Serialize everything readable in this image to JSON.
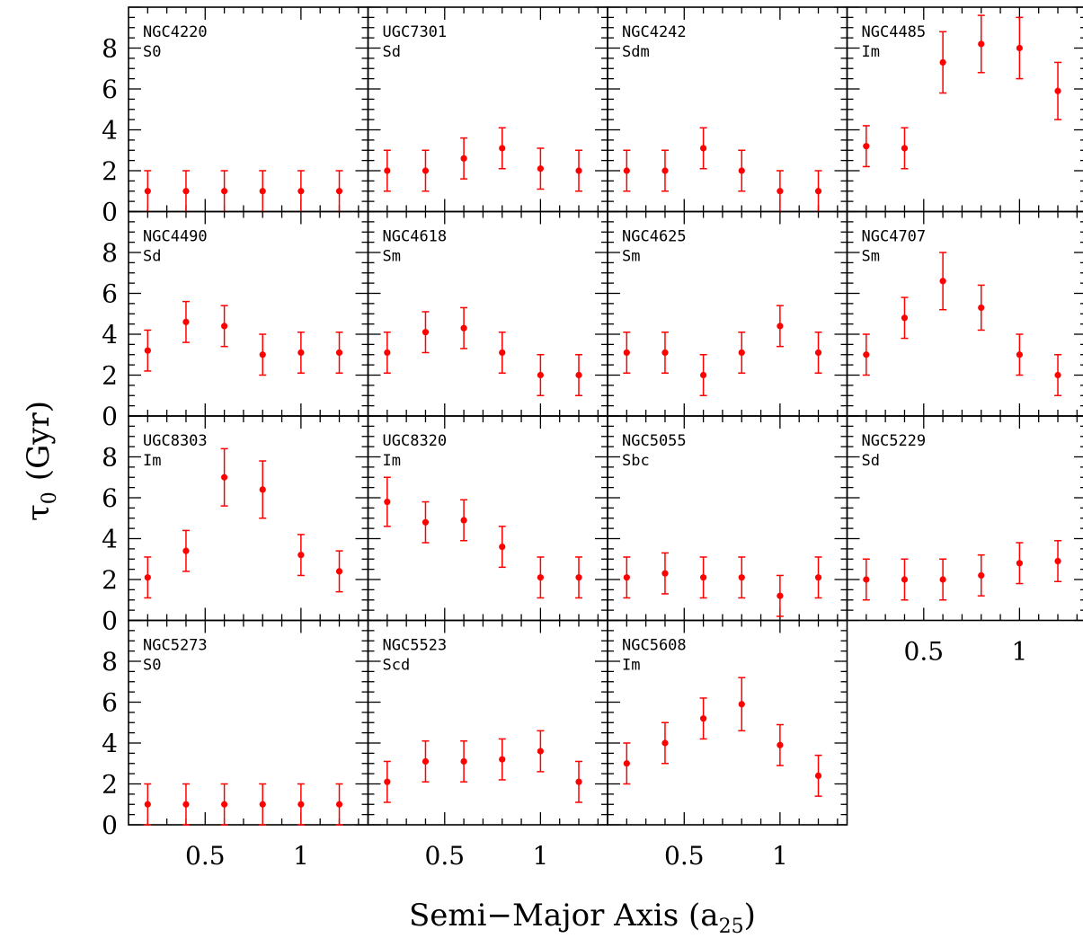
{
  "chart_data": {
    "type": "scatter",
    "xlabel": "Semi−Major Axis (a",
    "xlabel_sub": "25",
    "xlabel_close": ")",
    "ylabel": "τ",
    "ylabel_sub": "0",
    "ylabel_unit": "(Gyr)",
    "ylim": [
      0,
      10
    ],
    "xlim": [
      0.1,
      1.35
    ],
    "y_ticks": [
      0,
      2,
      4,
      6,
      8
    ],
    "x_tick_labels": [
      "0.5",
      "1"
    ],
    "x": [
      0.2,
      0.4,
      0.6,
      0.8,
      1.0,
      1.2
    ],
    "point_color": "#ff0000",
    "panels": [
      {
        "name": "NGC4220",
        "type": "S0",
        "values": [
          1.0,
          1.0,
          1.0,
          1.0,
          1.0,
          1.0
        ],
        "errors": [
          1.0,
          1.0,
          1.0,
          1.0,
          1.0,
          1.0
        ]
      },
      {
        "name": "UGC7301",
        "type": "Sd",
        "values": [
          2.0,
          2.0,
          2.6,
          3.1,
          2.1,
          2.0
        ],
        "errors": [
          1.0,
          1.0,
          1.0,
          1.0,
          1.0,
          1.0
        ]
      },
      {
        "name": "NGC4242",
        "type": "Sdm",
        "values": [
          2.0,
          2.0,
          3.1,
          2.0,
          1.0,
          1.0
        ],
        "errors": [
          1.0,
          1.0,
          1.0,
          1.0,
          1.0,
          1.0
        ]
      },
      {
        "name": "NGC4485",
        "type": "Im",
        "values": [
          3.2,
          3.1,
          7.3,
          8.2,
          8.0,
          5.9
        ],
        "errors": [
          1.0,
          1.0,
          1.5,
          1.4,
          1.5,
          1.4
        ]
      },
      {
        "name": "NGC4490",
        "type": "Sd",
        "values": [
          3.2,
          4.6,
          4.4,
          3.0,
          3.1,
          3.1
        ],
        "errors": [
          1.0,
          1.0,
          1.0,
          1.0,
          1.0,
          1.0
        ]
      },
      {
        "name": "NGC4618",
        "type": "Sm",
        "values": [
          3.1,
          4.1,
          4.3,
          3.1,
          2.0,
          2.0
        ],
        "errors": [
          1.0,
          1.0,
          1.0,
          1.0,
          1.0,
          1.0
        ]
      },
      {
        "name": "NGC4625",
        "type": "Sm",
        "values": [
          3.1,
          3.1,
          2.0,
          3.1,
          4.4,
          3.1
        ],
        "errors": [
          1.0,
          1.0,
          1.0,
          1.0,
          1.0,
          1.0
        ]
      },
      {
        "name": "NGC4707",
        "type": "Sm",
        "values": [
          3.0,
          4.8,
          6.6,
          5.3,
          3.0,
          2.0
        ],
        "errors": [
          1.0,
          1.0,
          1.4,
          1.1,
          1.0,
          1.0
        ]
      },
      {
        "name": "UGC8303",
        "type": "Im",
        "values": [
          2.1,
          3.4,
          7.0,
          6.4,
          3.2,
          2.4
        ],
        "errors": [
          1.0,
          1.0,
          1.4,
          1.4,
          1.0,
          1.0
        ]
      },
      {
        "name": "UGC8320",
        "type": "Im",
        "values": [
          5.8,
          4.8,
          4.9,
          3.6,
          2.1,
          2.1
        ],
        "errors": [
          1.2,
          1.0,
          1.0,
          1.0,
          1.0,
          1.0
        ]
      },
      {
        "name": "NGC5055",
        "type": "Sbc",
        "values": [
          2.1,
          2.3,
          2.1,
          2.1,
          1.2,
          2.1
        ],
        "errors": [
          1.0,
          1.0,
          1.0,
          1.0,
          1.0,
          1.0
        ]
      },
      {
        "name": "NGC5229",
        "type": "Sd",
        "values": [
          2.0,
          2.0,
          2.0,
          2.2,
          2.8,
          2.9
        ],
        "errors": [
          1.0,
          1.0,
          1.0,
          1.0,
          1.0,
          1.0
        ]
      },
      {
        "name": "NGC5273",
        "type": "S0",
        "values": [
          1.0,
          1.0,
          1.0,
          1.0,
          1.0,
          1.0
        ],
        "errors": [
          1.0,
          1.0,
          1.0,
          1.0,
          1.0,
          1.0
        ]
      },
      {
        "name": "NGC5523",
        "type": "Scd",
        "values": [
          2.1,
          3.1,
          3.1,
          3.2,
          3.6,
          2.1
        ],
        "errors": [
          1.0,
          1.0,
          1.0,
          1.0,
          1.0,
          1.0
        ]
      },
      {
        "name": "NGC5608",
        "type": "Im",
        "values": [
          3.0,
          4.0,
          5.2,
          5.9,
          3.9,
          2.4
        ],
        "errors": [
          1.0,
          1.0,
          1.0,
          1.3,
          1.0,
          1.0
        ]
      }
    ]
  }
}
